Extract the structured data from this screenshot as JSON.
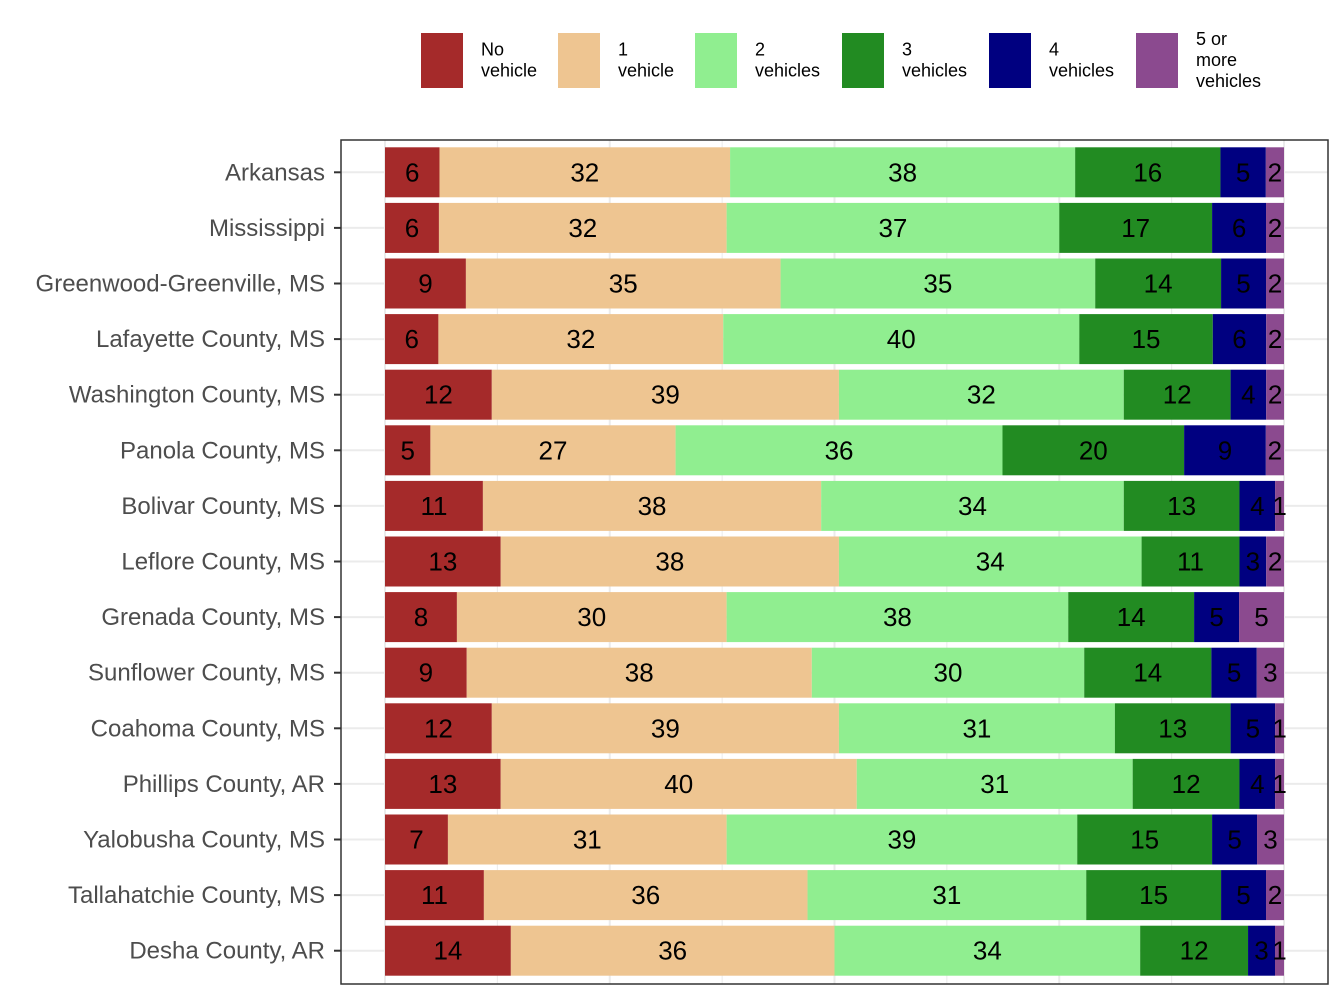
{
  "chart_data": {
    "type": "bar",
    "orientation": "horizontal",
    "stacked": true,
    "normalized_percent": true,
    "title": "",
    "xlabel": "",
    "ylabel": "",
    "xlim": [
      0,
      100
    ],
    "grid": true,
    "legend_position": "top",
    "categories": [
      "Arkansas",
      "Mississippi",
      "Greenwood-Greenville, MS",
      "Lafayette County, MS",
      "Washington County, MS",
      "Panola County, MS",
      "Bolivar County, MS",
      "Leflore County, MS",
      "Grenada County, MS",
      "Sunflower County, MS",
      "Coahoma County, MS",
      "Phillips County, AR",
      "Yalobusha County, MS",
      "Tallahatchie County, MS",
      "Desha County, AR"
    ],
    "series": [
      {
        "name": "No vehicle",
        "legend_lines": [
          "No",
          "vehicle"
        ],
        "color": "#A52A2A",
        "values": [
          6,
          6,
          9,
          6,
          12,
          5,
          11,
          13,
          8,
          9,
          12,
          13,
          7,
          11,
          14
        ]
      },
      {
        "name": "1 vehicle",
        "legend_lines": [
          "1",
          "vehicle"
        ],
        "color": "#EEC591",
        "values": [
          32,
          32,
          35,
          32,
          39,
          27,
          38,
          38,
          30,
          38,
          39,
          40,
          31,
          36,
          36
        ]
      },
      {
        "name": "2 vehicles",
        "legend_lines": [
          "2",
          "vehicles"
        ],
        "color": "#90EE90",
        "values": [
          38,
          37,
          35,
          40,
          32,
          36,
          34,
          34,
          38,
          30,
          31,
          31,
          39,
          31,
          34
        ]
      },
      {
        "name": "3 vehicles",
        "legend_lines": [
          "3",
          "vehicles"
        ],
        "color": "#228B22",
        "values": [
          16,
          17,
          14,
          15,
          12,
          20,
          13,
          11,
          14,
          14,
          13,
          12,
          15,
          15,
          12
        ]
      },
      {
        "name": "4 vehicles",
        "legend_lines": [
          "4",
          "vehicles"
        ],
        "color": "#000080",
        "values": [
          5,
          6,
          5,
          6,
          4,
          9,
          4,
          3,
          5,
          5,
          5,
          4,
          5,
          5,
          3
        ]
      },
      {
        "name": "5 or more vehicles",
        "legend_lines": [
          "5 or",
          "more",
          "vehicles"
        ],
        "color": "#8B4A8F",
        "values": [
          2,
          2,
          2,
          2,
          2,
          2,
          1,
          2,
          5,
          3,
          1,
          1,
          3,
          2,
          1
        ]
      }
    ]
  }
}
